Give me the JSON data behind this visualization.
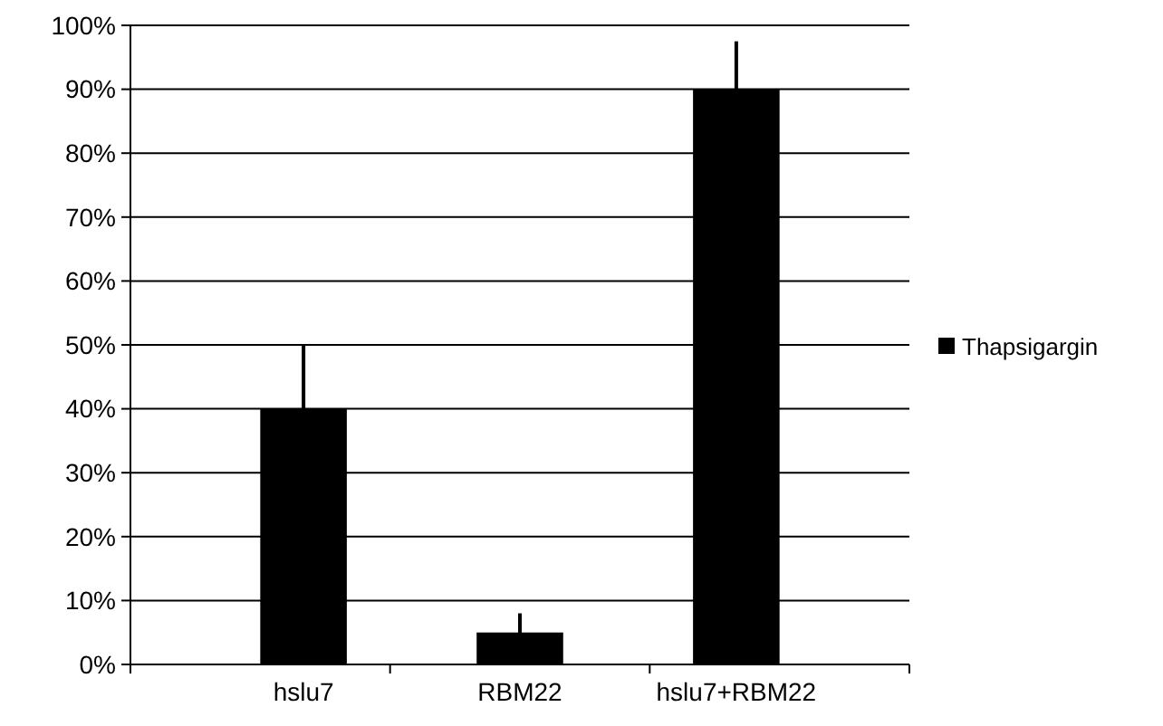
{
  "chart_data": {
    "type": "bar",
    "categories": [
      "hslu7",
      "RBM22",
      "hslu7+RBM22"
    ],
    "series": [
      {
        "name": "Thapsigargin",
        "color": "#000000",
        "values": [
          40,
          5,
          90
        ],
        "errors": [
          10,
          3,
          7.5
        ]
      }
    ],
    "ylim": [
      0,
      100
    ],
    "yticks": [
      {
        "value": 0,
        "label": "0%"
      },
      {
        "value": 10,
        "label": "10%"
      },
      {
        "value": 20,
        "label": "20%"
      },
      {
        "value": 30,
        "label": "30%"
      },
      {
        "value": 40,
        "label": "40%"
      },
      {
        "value": 50,
        "label": "50%"
      },
      {
        "value": 60,
        "label": "60%"
      },
      {
        "value": 70,
        "label": "70%"
      },
      {
        "value": 80,
        "label": "80%"
      },
      {
        "value": 90,
        "label": "90%"
      },
      {
        "value": 100,
        "label": "100%"
      }
    ],
    "grid": "y",
    "legend": "right"
  }
}
